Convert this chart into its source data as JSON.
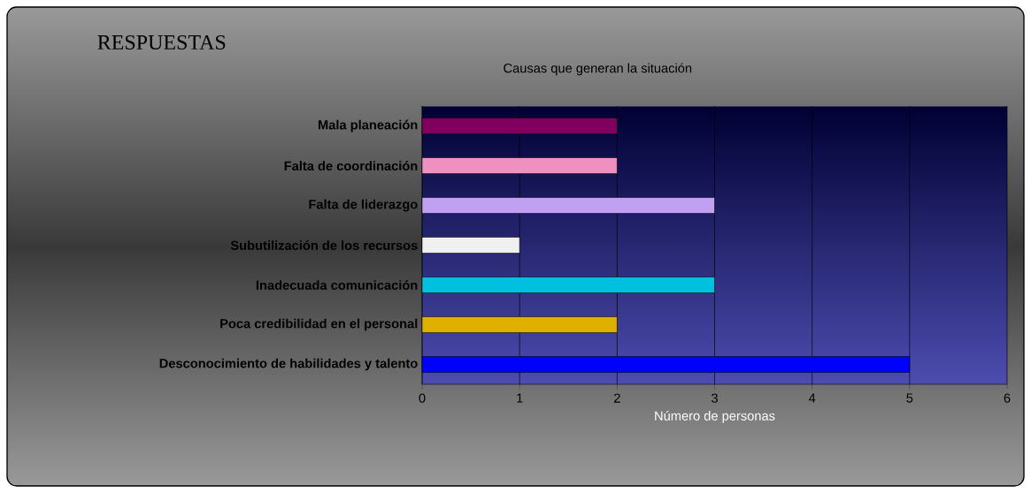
{
  "chart_data": {
    "type": "bar",
    "orientation": "horizontal",
    "title": "Causas que generan la situación",
    "xlabel": "Número de personas",
    "annotations": [
      "RESPUESTAS"
    ],
    "categories": [
      "Mala planeación",
      "Falta de coordinación",
      "Falta de liderazgo",
      "Subutilización de los recursos",
      "Inadecuada comunicación",
      "Poca credibilidad en el personal",
      "Desconocimiento de habilidades y talento"
    ],
    "values": [
      2,
      2,
      3,
      1,
      3,
      2,
      5
    ],
    "colors": [
      "#800060",
      "#f090c0",
      "#c0a0f0",
      "#f0f0f0",
      "#00c0e0",
      "#e0b000",
      "#0000ff"
    ],
    "xlim": [
      0,
      6
    ],
    "xticks": [
      0,
      1,
      2,
      3,
      4,
      5,
      6
    ],
    "grid": "x"
  }
}
